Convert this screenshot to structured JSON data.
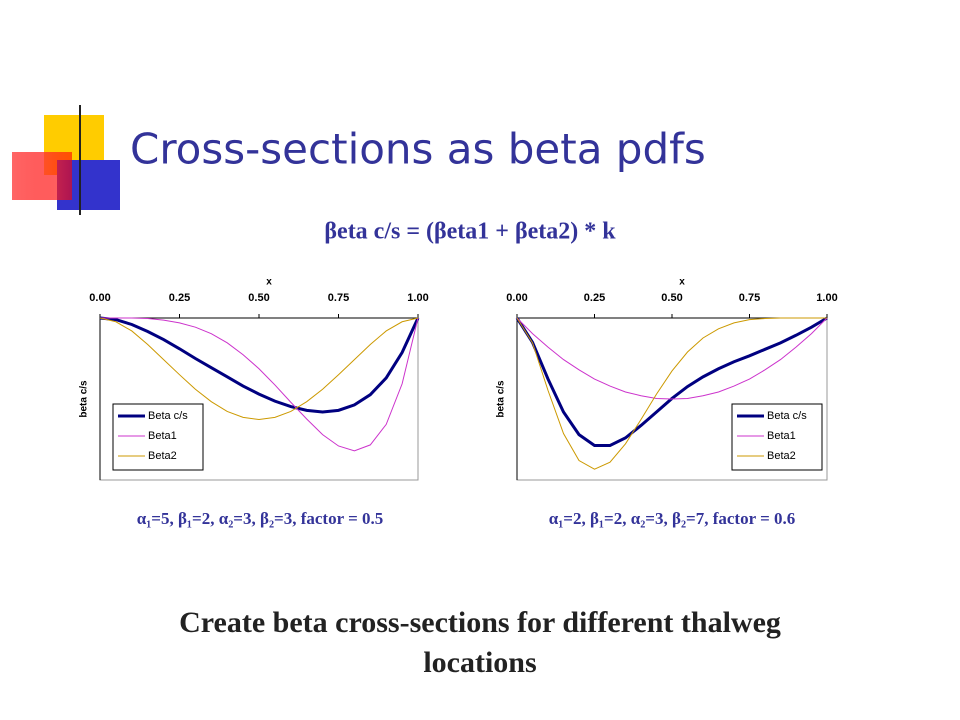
{
  "header": {
    "title": "Cross-sections as beta pdfs"
  },
  "formula": "βeta c/s = (βeta1 + βeta2) * k",
  "chart_data": [
    {
      "type": "line",
      "xlabel": "x",
      "ylabel": "beta c/s",
      "x": [
        0,
        0.05,
        0.1,
        0.15,
        0.2,
        0.25,
        0.3,
        0.35,
        0.4,
        0.45,
        0.5,
        0.55,
        0.6,
        0.65,
        0.7,
        0.75,
        0.8,
        0.85,
        0.9,
        0.95,
        1
      ],
      "xlim": [
        0,
        1
      ],
      "xticks": [
        {
          "value": 0,
          "label": "0.00"
        },
        {
          "value": 0.25,
          "label": "0.25"
        },
        {
          "value": 0.5,
          "label": "0.50"
        },
        {
          "value": 0.75,
          "label": "0.75"
        },
        {
          "value": 1,
          "label": "1.00"
        }
      ],
      "ylim": [
        -3,
        0
      ],
      "legend": "lower left",
      "series": [
        {
          "name": "Beta c/s",
          "color": "#000080",
          "values": [
            0,
            -0.03,
            -0.12,
            -0.25,
            -0.4,
            -0.57,
            -0.75,
            -0.92,
            -1.09,
            -1.26,
            -1.41,
            -1.54,
            -1.64,
            -1.71,
            -1.74,
            -1.71,
            -1.61,
            -1.42,
            -1.11,
            -0.64,
            0
          ]
        },
        {
          "name": "Beta1",
          "color": "#cc33cc",
          "values": [
            0,
            0,
            0,
            -0.01,
            -0.04,
            -0.09,
            -0.17,
            -0.29,
            -0.46,
            -0.68,
            -0.94,
            -1.24,
            -1.56,
            -1.87,
            -2.16,
            -2.37,
            -2.46,
            -2.35,
            -1.97,
            -1.22,
            0
          ]
        },
        {
          "name": "Beta2",
          "color": "#cc9900",
          "values": [
            0,
            -0.07,
            -0.24,
            -0.49,
            -0.77,
            -1.05,
            -1.32,
            -1.55,
            -1.73,
            -1.84,
            -1.88,
            -1.84,
            -1.73,
            -1.55,
            -1.32,
            -1.05,
            -0.77,
            -0.49,
            -0.24,
            -0.07,
            0
          ]
        }
      ],
      "caption": "α₁=5, β₁=2, α₂=3, β₂=3, factor = 0.5"
    },
    {
      "type": "line",
      "xlabel": "x",
      "ylabel": "beta c/s",
      "x": [
        0,
        0.05,
        0.1,
        0.15,
        0.2,
        0.25,
        0.3,
        0.35,
        0.4,
        0.45,
        0.5,
        0.55,
        0.6,
        0.65,
        0.7,
        0.75,
        0.8,
        0.85,
        0.9,
        0.95,
        1
      ],
      "xlim": [
        0,
        1
      ],
      "xticks": [
        {
          "value": 0,
          "label": "0.00"
        },
        {
          "value": 0.25,
          "label": "0.25"
        },
        {
          "value": 0.5,
          "label": "0.50"
        },
        {
          "value": 0.75,
          "label": "0.75"
        },
        {
          "value": 1,
          "label": "1.00"
        }
      ],
      "ylim": [
        -3,
        0
      ],
      "legend": "lower right",
      "series": [
        {
          "name": "Beta c/s",
          "color": "#000080",
          "values": [
            0,
            -0.45,
            -1.13,
            -1.74,
            -2.16,
            -2.36,
            -2.36,
            -2.22,
            -1.99,
            -1.74,
            -1.49,
            -1.27,
            -1.09,
            -0.94,
            -0.81,
            -0.7,
            -0.58,
            -0.46,
            -0.32,
            -0.17,
            0
          ]
        },
        {
          "name": "Beta1",
          "color": "#cc33cc",
          "values": [
            0,
            -0.29,
            -0.54,
            -0.77,
            -0.96,
            -1.13,
            -1.26,
            -1.37,
            -1.44,
            -1.49,
            -1.5,
            -1.49,
            -1.44,
            -1.37,
            -1.26,
            -1.13,
            -0.96,
            -0.77,
            -0.54,
            -0.29,
            0
          ]
        },
        {
          "name": "Beta2",
          "color": "#cc9900",
          "values": [
            0,
            -0.46,
            -1.34,
            -2.14,
            -2.64,
            -2.8,
            -2.67,
            -2.33,
            -1.88,
            -1.41,
            -0.98,
            -0.63,
            -0.37,
            -0.2,
            -0.09,
            -0.03,
            -0.01,
            0,
            0,
            0,
            0
          ]
        }
      ],
      "caption": "α₁=2, β₁=2, α₂=3, β₂=7, factor = 0.6"
    }
  ],
  "footer": {
    "line1": "Create beta cross-sections for different thalweg",
    "line2": "locations"
  }
}
